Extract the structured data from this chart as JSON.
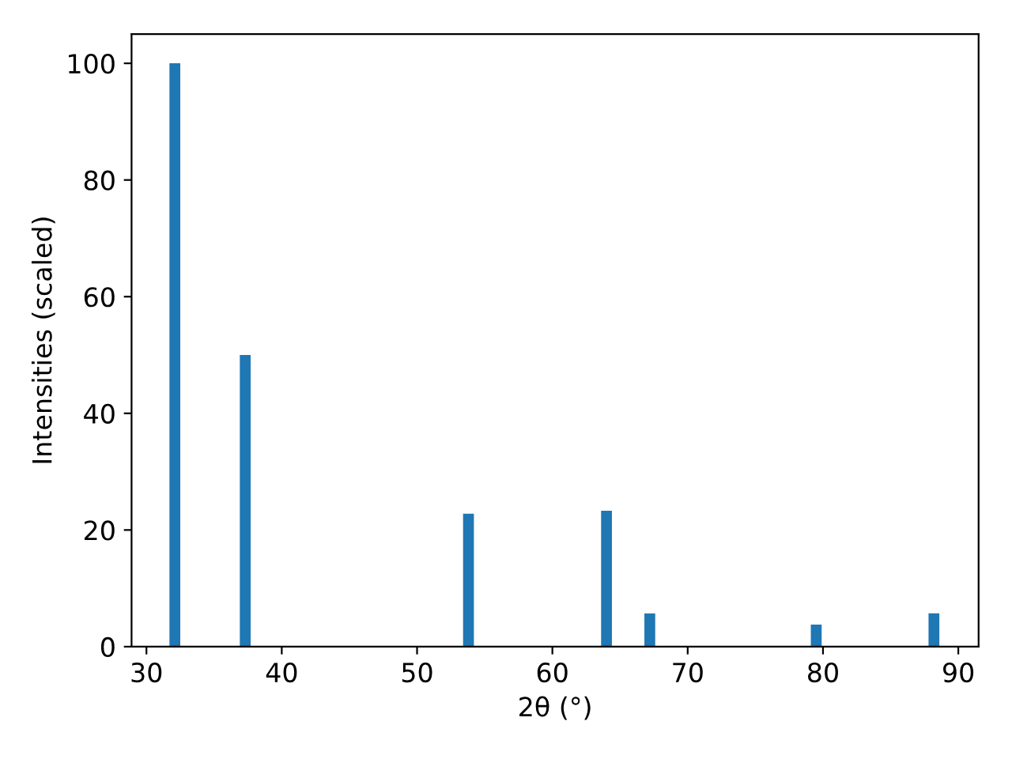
{
  "chart_data": {
    "type": "bar",
    "xlabel": "2θ (°)",
    "ylabel": "Intensities (scaled)",
    "x": [
      32.1,
      37.3,
      53.8,
      64.0,
      67.2,
      79.5,
      88.2
    ],
    "series": [
      {
        "color": "#1f77b4",
        "values": [
          100,
          50,
          22.8,
          23.3,
          5.7,
          3.8,
          5.7
        ]
      }
    ],
    "xlim": [
      28.9,
      91.5
    ],
    "xticks": [
      30,
      40,
      50,
      60,
      70,
      80,
      90
    ],
    "ylim": [
      0,
      105
    ],
    "yticks": [
      0,
      20,
      40,
      60,
      80,
      100
    ],
    "grid": false,
    "legend": false
  }
}
